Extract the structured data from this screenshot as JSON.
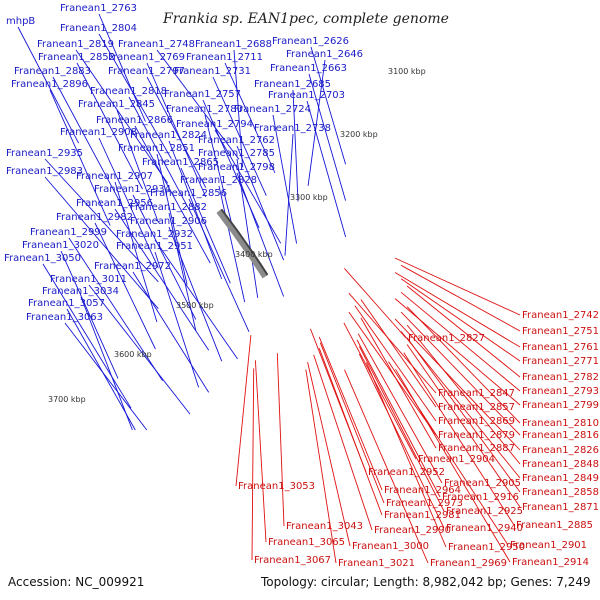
{
  "title": "Frankia sp. EAN1pec, complete genome",
  "footer": {
    "accession": "Accession: NC_009921",
    "summary": "Topology: circular; Length: 8,982,042 bp; Genes: 7,249"
  },
  "colors": {
    "forward": "#1515d8",
    "reverse": "#e01010",
    "backbone": "#8a8a8a",
    "marker": "#1f8a1f"
  },
  "kbp_ticks": [
    "3100 kbp",
    "3200 kbp",
    "3300 kbp",
    "3400 kbp",
    "3500 kbp",
    "3600 kbp",
    "3700 kbp"
  ],
  "blue_labels": [
    "Franean1_2763",
    "mhpB",
    "Franean1_2804",
    "Franean1_2819",
    "Franean1_2748",
    "Franean1_2688",
    "Franean1_2852",
    "Franean1_2769",
    "Franean1_2711",
    "Franean1_2626",
    "Franean1_2646",
    "Franean1_2883",
    "Franean1_2797",
    "Franean1_2731",
    "Franean1_2663",
    "Franean1_2896",
    "Franean1_2685",
    "Franean1_2818",
    "Franean1_2757",
    "Franean1_2703",
    "Franean1_2845",
    "Franean1_2780",
    "Franean1_2724",
    "Franean1_2866",
    "Franean1_2794",
    "Franean1_2738",
    "Franean1_2908",
    "Franean1_2824",
    "Franean1_2762",
    "Franean1_2935",
    "Franean1_2851",
    "Franean1_2785",
    "Franean1_2865",
    "Franean1_2798",
    "Franean1_2983",
    "Franean1_2907",
    "Franean1_2828",
    "Franean1_2934",
    "Franean1_2856",
    "Franean1_2956",
    "Franean1_2882",
    "Franean1_2982",
    "Franean1_2906",
    "Franean1_2999",
    "Franean1_2932",
    "Franean1_3020",
    "Franean1_2951",
    "Franean1_3050",
    "Franean1_2972",
    "Franean1_3011",
    "Franean1_3034",
    "Franean1_3057",
    "Franean1_3063"
  ],
  "red_labels": [
    "Franean1_2742",
    "Franean1_2751",
    "Franean1_2827",
    "Franean1_2761",
    "Franean1_2771",
    "Franean1_2782",
    "Franean1_2847",
    "Franean1_2793",
    "Franean1_2857",
    "Franean1_2799",
    "Franean1_2869",
    "Franean1_2810",
    "Franean1_2879",
    "Franean1_2816",
    "Franean1_2887",
    "Franean1_2826",
    "Franean1_2904",
    "Franean1_2848",
    "Franean1_2952",
    "Franean1_2849",
    "Franean1_3053",
    "Franean1_2964",
    "Franean1_2905",
    "Franean1_2858",
    "Franean1_2973",
    "Franean1_2916",
    "Franean1_2871",
    "Franean1_2981",
    "Franean1_2925",
    "Franean1_3043",
    "Franean1_2990",
    "Franean1_2940",
    "Franean1_2885",
    "Franean1_3065",
    "Franean1_3000",
    "Franean1_2950",
    "Franean1_2901",
    "Franean1_3067",
    "Franean1_3021",
    "Franean1_2969",
    "Franean1_2914"
  ]
}
